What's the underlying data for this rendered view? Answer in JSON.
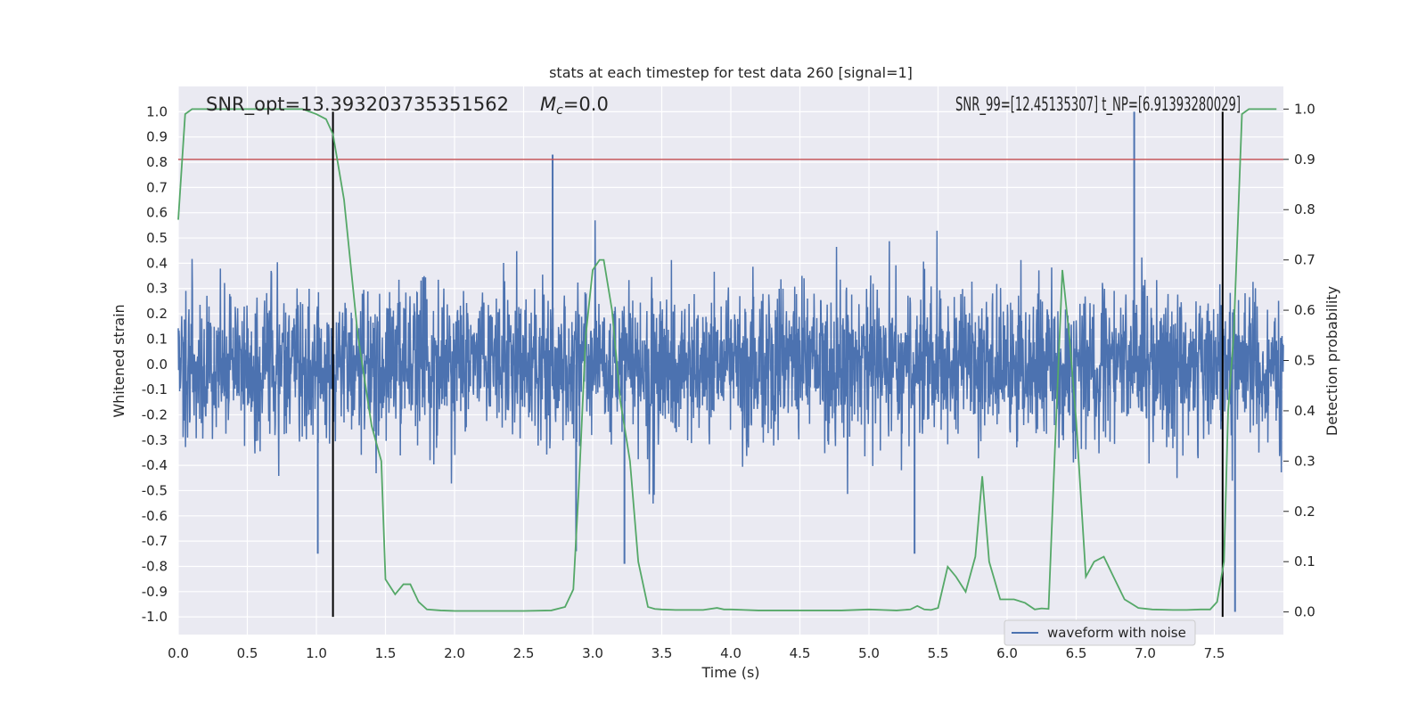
{
  "chart_data": {
    "type": "line",
    "title": "stats at each timestep for test data 260 [signal=1]",
    "xlabel": "Time (s)",
    "ylabel_left": "Whitened strain",
    "ylabel_right": "Detection probability",
    "xlim": [
      0.0,
      8.0
    ],
    "ylim_left": [
      -1.07,
      1.1
    ],
    "ylim_right": [
      -0.045,
      1.045
    ],
    "x_ticks": [
      "0.0",
      "0.5",
      "1.0",
      "1.5",
      "2.0",
      "2.5",
      "3.0",
      "3.5",
      "4.0",
      "4.5",
      "5.0",
      "5.5",
      "6.0",
      "6.5",
      "7.0",
      "7.5"
    ],
    "x_tick_values": [
      0.0,
      0.5,
      1.0,
      1.5,
      2.0,
      2.5,
      3.0,
      3.5,
      4.0,
      4.5,
      5.0,
      5.5,
      6.0,
      6.5,
      7.0,
      7.5
    ],
    "y_left_ticks": [
      "1.0",
      "0.9",
      "0.8",
      "0.7",
      "0.6",
      "0.5",
      "0.4",
      "0.3",
      "0.2",
      "0.1",
      "0.0",
      "-0.1",
      "-0.2",
      "-0.3",
      "-0.4",
      "-0.5",
      "-0.6",
      "-0.7",
      "-0.8",
      "-0.9",
      "-1.0"
    ],
    "y_left_tick_values": [
      1.0,
      0.9,
      0.8,
      0.7,
      0.6,
      0.5,
      0.4,
      0.3,
      0.2,
      0.1,
      0.0,
      -0.1,
      -0.2,
      -0.3,
      -0.4,
      -0.5,
      -0.6,
      -0.7,
      -0.8,
      -0.9,
      -1.0
    ],
    "y_right_ticks": [
      "1.0",
      "0.9",
      "0.8",
      "0.7",
      "0.6",
      "0.5",
      "0.4",
      "0.3",
      "0.2",
      "0.1",
      "0.0"
    ],
    "y_right_tick_values": [
      1.0,
      0.9,
      0.8,
      0.7,
      0.6,
      0.5,
      0.4,
      0.3,
      0.2,
      0.1,
      0.0
    ],
    "grid": true,
    "legend": {
      "placement": "bottom-right",
      "entries": [
        "waveform with noise"
      ]
    },
    "annotations": {
      "snr_opt": "SNR_opt=13.393203735351562",
      "mc_symbol": "M",
      "mc_subscript": "c",
      "mc_value": "=0.0",
      "right_overlap": "SNR_99=[12.45135307]  t_NP=[6.91393280029]"
    },
    "vertical_lines_x": [
      1.12,
      7.56
    ],
    "threshold": {
      "value": 0.9,
      "axis": "right"
    },
    "waveform": {
      "name": "waveform with noise",
      "samples_per_second": 400,
      "seed": 260,
      "spikes": [
        {
          "x": 2.71,
          "y": 0.83
        },
        {
          "x": 6.92,
          "y": 1.0
        },
        {
          "x": 7.65,
          "y": -0.98
        },
        {
          "x": 2.88,
          "y": -0.74
        },
        {
          "x": 3.23,
          "y": -0.79
        },
        {
          "x": 1.01,
          "y": -0.75
        },
        {
          "x": 5.33,
          "y": -0.75
        }
      ]
    },
    "detection_probability": {
      "x": [
        0.0,
        0.05,
        0.1,
        0.15,
        0.2,
        0.3,
        0.4,
        0.5,
        0.6,
        0.7,
        0.8,
        0.9,
        1.0,
        1.07,
        1.12,
        1.2,
        1.3,
        1.4,
        1.47,
        1.5,
        1.57,
        1.63,
        1.68,
        1.74,
        1.8,
        1.9,
        2.0,
        2.1,
        2.3,
        2.5,
        2.7,
        2.8,
        2.86,
        2.9,
        2.95,
        3.0,
        3.05,
        3.08,
        3.14,
        3.2,
        3.27,
        3.33,
        3.4,
        3.45,
        3.5,
        3.6,
        3.7,
        3.8,
        3.9,
        3.95,
        4.0,
        4.1,
        4.2,
        4.4,
        4.6,
        4.8,
        5.0,
        5.1,
        5.2,
        5.3,
        5.35,
        5.4,
        5.45,
        5.5,
        5.57,
        5.63,
        5.7,
        5.77,
        5.82,
        5.87,
        5.95,
        6.05,
        6.13,
        6.2,
        6.25,
        6.3,
        6.35,
        6.4,
        6.45,
        6.5,
        6.57,
        6.63,
        6.7,
        6.77,
        6.85,
        6.95,
        7.05,
        7.2,
        7.3,
        7.4,
        7.47,
        7.52,
        7.57,
        7.6,
        7.64,
        7.7,
        7.75,
        7.85,
        7.95
      ],
      "y": [
        0.78,
        0.99,
        1.0,
        1.0,
        1.0,
        1.0,
        1.0,
        1.0,
        1.0,
        1.0,
        1.0,
        1.0,
        0.99,
        0.98,
        0.95,
        0.82,
        0.55,
        0.37,
        0.3,
        0.065,
        0.035,
        0.055,
        0.055,
        0.02,
        0.005,
        0.003,
        0.002,
        0.002,
        0.002,
        0.002,
        0.003,
        0.01,
        0.045,
        0.25,
        0.55,
        0.68,
        0.7,
        0.7,
        0.6,
        0.42,
        0.3,
        0.1,
        0.01,
        0.006,
        0.005,
        0.004,
        0.004,
        0.004,
        0.008,
        0.005,
        0.005,
        0.004,
        0.003,
        0.003,
        0.003,
        0.003,
        0.005,
        0.004,
        0.003,
        0.005,
        0.012,
        0.005,
        0.004,
        0.008,
        0.09,
        0.07,
        0.04,
        0.11,
        0.27,
        0.1,
        0.025,
        0.025,
        0.018,
        0.005,
        0.007,
        0.006,
        0.35,
        0.68,
        0.55,
        0.38,
        0.07,
        0.1,
        0.11,
        0.07,
        0.025,
        0.008,
        0.005,
        0.004,
        0.004,
        0.005,
        0.005,
        0.02,
        0.1,
        0.4,
        0.55,
        0.99,
        1.0,
        1.0,
        1.0
      ]
    },
    "colors": {
      "waveform": "#4c72b0",
      "probability": "#55a868",
      "threshold": "#c44e52",
      "vlines": "#000000",
      "plot_background": "#eaeaf2",
      "grid": "#ffffff"
    }
  }
}
